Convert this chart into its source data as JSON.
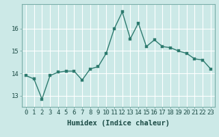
{
  "x": [
    0,
    1,
    2,
    3,
    4,
    5,
    6,
    7,
    8,
    9,
    10,
    11,
    12,
    13,
    14,
    15,
    16,
    17,
    18,
    19,
    20,
    21,
    22,
    23
  ],
  "y": [
    13.9,
    13.75,
    12.85,
    13.9,
    14.05,
    14.1,
    14.1,
    13.7,
    14.2,
    14.3,
    14.9,
    16.0,
    16.75,
    15.55,
    16.25,
    15.2,
    15.5,
    15.2,
    15.15,
    15.0,
    14.9,
    14.65,
    14.6,
    14.2
  ],
  "line_color": "#2d7a6e",
  "marker_color": "#2d7a6e",
  "bg_color": "#cce9e7",
  "grid_color": "#ffffff",
  "xlabel": "Humidex (Indice chaleur)",
  "xlim": [
    -0.5,
    23.5
  ],
  "ylim": [
    12.5,
    17.1
  ],
  "yticks": [
    13,
    14,
    15,
    16
  ],
  "xticks": [
    0,
    1,
    2,
    3,
    4,
    5,
    6,
    7,
    8,
    9,
    10,
    11,
    12,
    13,
    14,
    15,
    16,
    17,
    18,
    19,
    20,
    21,
    22,
    23
  ],
  "xtick_labels": [
    "0",
    "1",
    "2",
    "3",
    "4",
    "5",
    "6",
    "7",
    "8",
    "9",
    "10",
    "11",
    "12",
    "13",
    "14",
    "15",
    "16",
    "17",
    "18",
    "19",
    "20",
    "21",
    "22",
    "23"
  ],
  "tick_fontsize": 6.5,
  "xlabel_fontsize": 7.5,
  "line_width": 1.0,
  "marker_size": 2.5
}
